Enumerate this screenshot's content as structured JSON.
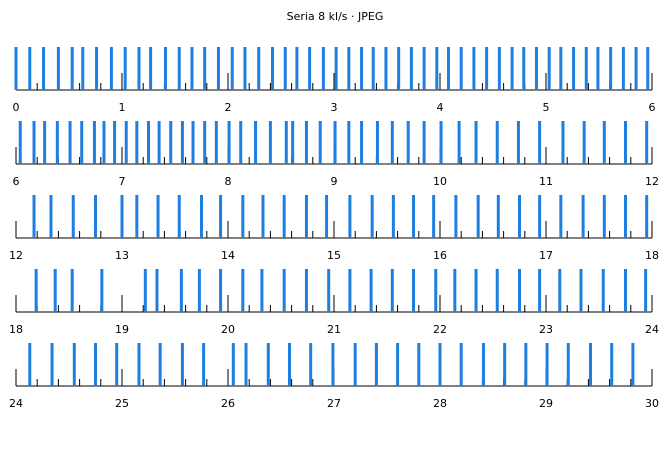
{
  "chart_data": {
    "type": "timeline",
    "title": "Seria 8 kl/s · JPEG",
    "color": "#1e7fe0",
    "minor_tick_step": 0.2,
    "rows": [
      {
        "xlim": [
          0,
          6
        ],
        "xticks": [
          0,
          1,
          2,
          3,
          4,
          5,
          6
        ],
        "values": [
          0.0,
          0.13,
          0.26,
          0.4,
          0.53,
          0.63,
          0.76,
          0.9,
          1.03,
          1.16,
          1.27,
          1.41,
          1.54,
          1.66,
          1.78,
          1.91,
          2.04,
          2.16,
          2.29,
          2.42,
          2.54,
          2.65,
          2.77,
          2.9,
          3.02,
          3.14,
          3.26,
          3.37,
          3.49,
          3.61,
          3.73,
          3.85,
          3.97,
          4.08,
          4.2,
          4.32,
          4.44,
          4.56,
          4.68,
          4.79,
          4.91,
          5.03,
          5.14,
          5.26,
          5.38,
          5.49,
          5.61,
          5.73,
          5.85,
          5.96
        ]
      },
      {
        "xlim": [
          6,
          12
        ],
        "xticks": [
          6,
          7,
          8,
          9,
          10,
          11,
          12
        ],
        "values": [
          6.04,
          6.17,
          6.27,
          6.39,
          6.51,
          6.62,
          6.74,
          6.83,
          6.93,
          7.04,
          7.14,
          7.25,
          7.35,
          7.46,
          7.57,
          7.67,
          7.78,
          7.89,
          8.01,
          8.12,
          8.26,
          8.4,
          8.55,
          8.61,
          8.74,
          8.87,
          9.01,
          9.14,
          9.26,
          9.41,
          9.55,
          9.7,
          9.85,
          10.01,
          10.18,
          10.34,
          10.54,
          10.74,
          10.94,
          11.16,
          11.36,
          11.55,
          11.75,
          11.95
        ]
      },
      {
        "xlim": [
          12,
          18
        ],
        "xticks": [
          12,
          13,
          14,
          15,
          16,
          17,
          18
        ],
        "values": [
          12.17,
          12.33,
          12.54,
          12.75,
          13.0,
          13.14,
          13.34,
          13.54,
          13.75,
          13.93,
          14.14,
          14.33,
          14.53,
          14.74,
          14.93,
          15.15,
          15.36,
          15.56,
          15.75,
          15.94,
          16.15,
          16.36,
          16.55,
          16.75,
          16.94,
          17.14,
          17.35,
          17.55,
          17.75,
          17.95
        ]
      },
      {
        "xlim": [
          18,
          24
        ],
        "xticks": [
          18,
          19,
          20,
          21,
          22,
          23,
          24
        ],
        "values": [
          18.19,
          18.37,
          18.53,
          18.81,
          19.22,
          19.33,
          19.56,
          19.73,
          19.93,
          20.14,
          20.32,
          20.53,
          20.74,
          20.95,
          21.15,
          21.35,
          21.55,
          21.75,
          21.96,
          22.14,
          22.34,
          22.54,
          22.75,
          22.94,
          23.13,
          23.33,
          23.54,
          23.75,
          23.94
        ]
      },
      {
        "xlim": [
          24,
          30
        ],
        "xticks": [
          24,
          25,
          26,
          27,
          28,
          29,
          30
        ],
        "values": [
          24.13,
          24.34,
          24.55,
          24.75,
          24.95,
          25.16,
          25.36,
          25.57,
          25.77,
          26.05,
          26.17,
          26.38,
          26.58,
          26.78,
          26.99,
          27.2,
          27.4,
          27.6,
          27.8,
          28.0,
          28.2,
          28.41,
          28.61,
          28.81,
          29.01,
          29.21,
          29.42,
          29.62,
          29.82
        ]
      }
    ]
  }
}
